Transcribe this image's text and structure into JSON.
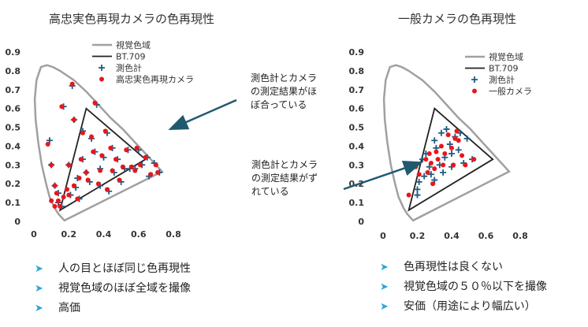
{
  "left": {
    "title": "高忠実色再現カメラの色再現性",
    "bullets": [
      "人の目とほぼ同じ色再現性",
      "視覚色域のほぼ全域を撮像",
      "高価"
    ]
  },
  "right": {
    "title": "一般カメラの色再現性",
    "bullets": [
      "色再現性は良くない",
      "視覚色域の５０％以下を撮像",
      "安価（用途により幅広い）"
    ]
  },
  "annotations": {
    "a1": [
      "測色計とカメラ",
      "の測定結果がほ",
      "ぼ合っている"
    ],
    "a2": [
      "測色計とカメラ",
      "の測定結果がず",
      "れている"
    ]
  },
  "colors": {
    "locus": "#a0a0a0",
    "triangle": "#222222",
    "meter": "#1f5a82",
    "camera": "#e8161c",
    "arrow": "#1f5a6e",
    "bullet": "#2aa6dc"
  },
  "chart_data": [
    {
      "type": "scatter",
      "title": "高忠実色再現カメラの色再現性",
      "xlim": [
        0,
        0.8
      ],
      "ylim": [
        0,
        0.9
      ],
      "xticks": [
        0,
        0.2,
        0.4,
        0.6,
        0.8
      ],
      "yticks": [
        0,
        0.1,
        0.2,
        0.3,
        0.4,
        0.5,
        0.6,
        0.7,
        0.8,
        0.9
      ],
      "legend_position": "top-right",
      "legend": [
        "視覚色域",
        "BT.709",
        "測色計",
        "高忠実色再現カメラ"
      ],
      "locus": [
        [
          0.175,
          0.005
        ],
        [
          0.16,
          0.02
        ],
        [
          0.14,
          0.04
        ],
        [
          0.12,
          0.07
        ],
        [
          0.09,
          0.13
        ],
        [
          0.07,
          0.2
        ],
        [
          0.045,
          0.3
        ],
        [
          0.025,
          0.42
        ],
        [
          0.01,
          0.54
        ],
        [
          0.005,
          0.65
        ],
        [
          0.015,
          0.75
        ],
        [
          0.04,
          0.82
        ],
        [
          0.075,
          0.83
        ],
        [
          0.11,
          0.82
        ],
        [
          0.15,
          0.8
        ],
        [
          0.23,
          0.75
        ],
        [
          0.3,
          0.69
        ],
        [
          0.37,
          0.62
        ],
        [
          0.44,
          0.55
        ],
        [
          0.51,
          0.49
        ],
        [
          0.58,
          0.42
        ],
        [
          0.64,
          0.36
        ],
        [
          0.69,
          0.31
        ],
        [
          0.735,
          0.265
        ],
        [
          0.175,
          0.005
        ]
      ],
      "triangle": [
        [
          0.64,
          0.33
        ],
        [
          0.3,
          0.6
        ],
        [
          0.15,
          0.06
        ]
      ],
      "series": [
        {
          "name": "測色計",
          "points": [
            [
              0.09,
              0.43
            ],
            [
              0.1,
              0.3
            ],
            [
              0.12,
              0.19
            ],
            [
              0.14,
              0.15
            ],
            [
              0.14,
              0.1
            ],
            [
              0.16,
              0.08
            ],
            [
              0.17,
              0.61
            ],
            [
              0.2,
              0.3
            ],
            [
              0.22,
              0.72
            ],
            [
              0.23,
              0.54
            ],
            [
              0.24,
              0.18
            ],
            [
              0.26,
              0.12
            ],
            [
              0.28,
              0.33
            ],
            [
              0.28,
              0.48
            ],
            [
              0.3,
              0.26
            ],
            [
              0.33,
              0.44
            ],
            [
              0.35,
              0.37
            ],
            [
              0.36,
              0.62
            ],
            [
              0.38,
              0.28
            ],
            [
              0.38,
              0.19
            ],
            [
              0.4,
              0.34
            ],
            [
              0.42,
              0.47
            ],
            [
              0.43,
              0.16
            ],
            [
              0.45,
              0.39
            ],
            [
              0.46,
              0.26
            ],
            [
              0.48,
              0.33
            ],
            [
              0.5,
              0.21
            ],
            [
              0.52,
              0.28
            ],
            [
              0.54,
              0.38
            ],
            [
              0.55,
              0.28
            ],
            [
              0.58,
              0.28
            ],
            [
              0.6,
              0.38
            ],
            [
              0.62,
              0.3
            ],
            [
              0.65,
              0.34
            ],
            [
              0.66,
              0.24
            ],
            [
              0.69,
              0.31
            ],
            [
              0.72,
              0.26
            ],
            [
              0.25,
              0.23
            ],
            [
              0.21,
              0.14
            ],
            [
              0.32,
              0.21
            ]
          ]
        },
        {
          "name": "高忠実色再現カメラ",
          "points": [
            [
              0.08,
              0.41
            ],
            [
              0.1,
              0.3
            ],
            [
              0.12,
              0.19
            ],
            [
              0.13,
              0.15
            ],
            [
              0.14,
              0.11
            ],
            [
              0.15,
              0.08
            ],
            [
              0.16,
              0.61
            ],
            [
              0.2,
              0.3
            ],
            [
              0.22,
              0.73
            ],
            [
              0.23,
              0.54
            ],
            [
              0.23,
              0.19
            ],
            [
              0.25,
              0.12
            ],
            [
              0.27,
              0.33
            ],
            [
              0.28,
              0.47
            ],
            [
              0.3,
              0.26
            ],
            [
              0.33,
              0.45
            ],
            [
              0.34,
              0.37
            ],
            [
              0.35,
              0.63
            ],
            [
              0.38,
              0.27
            ],
            [
              0.37,
              0.2
            ],
            [
              0.39,
              0.35
            ],
            [
              0.41,
              0.48
            ],
            [
              0.42,
              0.17
            ],
            [
              0.44,
              0.39
            ],
            [
              0.45,
              0.27
            ],
            [
              0.47,
              0.33
            ],
            [
              0.49,
              0.22
            ],
            [
              0.51,
              0.29
            ],
            [
              0.53,
              0.38
            ],
            [
              0.56,
              0.29
            ],
            [
              0.58,
              0.27
            ],
            [
              0.59,
              0.39
            ],
            [
              0.61,
              0.3
            ],
            [
              0.64,
              0.34
            ],
            [
              0.67,
              0.25
            ],
            [
              0.7,
              0.3
            ],
            [
              0.71,
              0.26
            ],
            [
              0.26,
              0.23
            ],
            [
              0.2,
              0.14
            ],
            [
              0.31,
              0.22
            ],
            [
              0.12,
              0.08
            ],
            [
              0.17,
              0.13
            ],
            [
              0.19,
              0.17
            ],
            [
              0.1,
              0.11
            ]
          ]
        }
      ]
    },
    {
      "type": "scatter",
      "title": "一般カメラの色再現性",
      "xlim": [
        0,
        0.8
      ],
      "ylim": [
        0,
        0.9
      ],
      "xticks": [
        0,
        0.2,
        0.4,
        0.6,
        0.8
      ],
      "yticks": [
        0,
        0.1,
        0.2,
        0.3,
        0.4,
        0.5,
        0.6,
        0.7,
        0.8,
        0.9
      ],
      "legend_position": "top-right",
      "legend": [
        "視覚色域",
        "BT.709",
        "測色計",
        "一般カメラ"
      ],
      "locus": [
        [
          0.175,
          0.005
        ],
        [
          0.16,
          0.02
        ],
        [
          0.14,
          0.04
        ],
        [
          0.12,
          0.07
        ],
        [
          0.09,
          0.13
        ],
        [
          0.07,
          0.2
        ],
        [
          0.045,
          0.3
        ],
        [
          0.025,
          0.42
        ],
        [
          0.01,
          0.54
        ],
        [
          0.005,
          0.65
        ],
        [
          0.015,
          0.75
        ],
        [
          0.04,
          0.82
        ],
        [
          0.075,
          0.83
        ],
        [
          0.11,
          0.82
        ],
        [
          0.15,
          0.8
        ],
        [
          0.23,
          0.75
        ],
        [
          0.3,
          0.69
        ],
        [
          0.37,
          0.62
        ],
        [
          0.44,
          0.55
        ],
        [
          0.51,
          0.49
        ],
        [
          0.58,
          0.42
        ],
        [
          0.64,
          0.36
        ],
        [
          0.69,
          0.31
        ],
        [
          0.735,
          0.265
        ],
        [
          0.175,
          0.005
        ]
      ],
      "triangle": [
        [
          0.64,
          0.33
        ],
        [
          0.3,
          0.6
        ],
        [
          0.15,
          0.06
        ]
      ],
      "series": [
        {
          "name": "測色計",
          "points": [
            [
              0.2,
              0.17
            ],
            [
              0.21,
              0.21
            ],
            [
              0.23,
              0.33
            ],
            [
              0.25,
              0.36
            ],
            [
              0.27,
              0.29
            ],
            [
              0.28,
              0.25
            ],
            [
              0.3,
              0.43
            ],
            [
              0.31,
              0.39
            ],
            [
              0.33,
              0.3
            ],
            [
              0.34,
              0.47
            ],
            [
              0.36,
              0.34
            ],
            [
              0.37,
              0.49
            ],
            [
              0.39,
              0.41
            ],
            [
              0.4,
              0.29
            ],
            [
              0.42,
              0.45
            ],
            [
              0.44,
              0.38
            ],
            [
              0.45,
              0.47
            ],
            [
              0.47,
              0.31
            ],
            [
              0.49,
              0.44
            ],
            [
              0.52,
              0.33
            ],
            [
              0.2,
              0.14
            ],
            [
              0.24,
              0.24
            ],
            [
              0.3,
              0.22
            ],
            [
              0.35,
              0.26
            ],
            [
              0.4,
              0.36
            ]
          ]
        },
        {
          "name": "一般カメラ",
          "points": [
            [
              0.15,
              0.14
            ],
            [
              0.19,
              0.29
            ],
            [
              0.21,
              0.25
            ],
            [
              0.25,
              0.33
            ],
            [
              0.26,
              0.26
            ],
            [
              0.28,
              0.31
            ],
            [
              0.29,
              0.2
            ],
            [
              0.31,
              0.37
            ],
            [
              0.32,
              0.33
            ],
            [
              0.34,
              0.4
            ],
            [
              0.35,
              0.3
            ],
            [
              0.36,
              0.36
            ],
            [
              0.38,
              0.46
            ],
            [
              0.4,
              0.39
            ],
            [
              0.41,
              0.3
            ],
            [
              0.43,
              0.48
            ],
            [
              0.44,
              0.43
            ],
            [
              0.46,
              0.35
            ],
            [
              0.48,
              0.3
            ],
            [
              0.53,
              0.33
            ],
            [
              0.3,
              0.28
            ],
            [
              0.27,
              0.36
            ],
            [
              0.42,
              0.44
            ]
          ]
        }
      ]
    }
  ]
}
